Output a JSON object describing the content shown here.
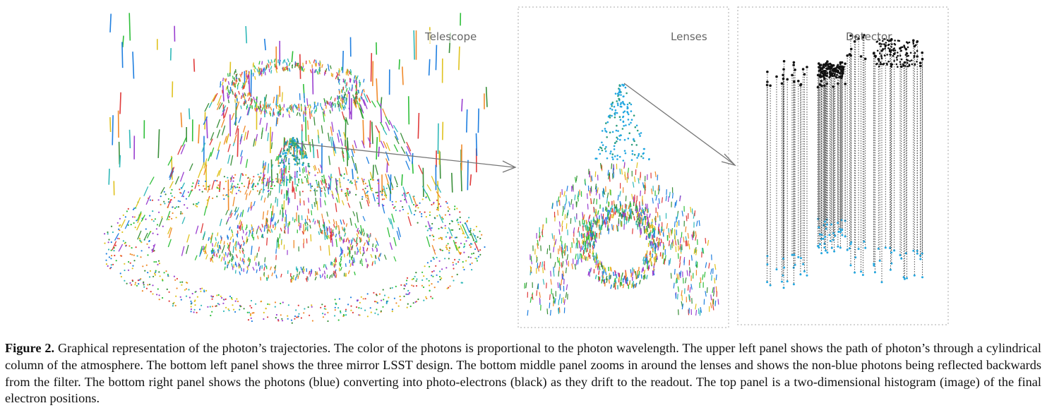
{
  "panels": {
    "telescope_label": "Telescope",
    "lenses_label": "Lenses",
    "detector_label": "Detector"
  },
  "caption": {
    "label": "Figure 2.",
    "text": "Graphical representation of the photon’s trajectories. The color of the photons is proportional to the photon wavelength. The upper left panel shows the path of photon’s through a cylindrical column of the atmosphere. The bottom left panel shows the three mirror LSST design. The bottom middle panel zooms in around the lenses and shows the non-blue photons being reflected backwards from the filter. The bottom right panel shows the photons (blue) converting into photo-electrons (black) as they drift to the readout. The top panel is a two-dimensional histogram (image) of the final electron positions."
  },
  "colors": {
    "photon_palette": [
      "#2fbf3a",
      "#1f7fe0",
      "#e03a3a",
      "#e0c21f",
      "#9a3fd0",
      "#2fb8b8",
      "#f08a2a",
      "#3a8f3a"
    ],
    "blue_photon": "#23a7e0",
    "electron": "#111111",
    "panel_border": "#a8a8a8",
    "arrow": "#777777"
  }
}
